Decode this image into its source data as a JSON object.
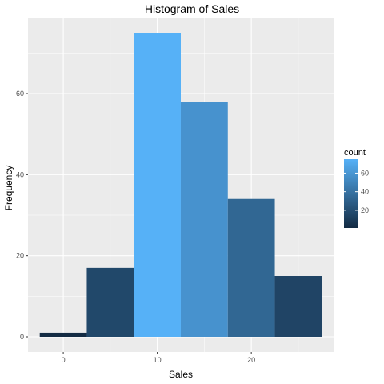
{
  "chart_data": {
    "type": "bar",
    "title": "Histogram of Sales",
    "xlabel": "Sales",
    "ylabel": "Frequency",
    "bins": [
      {
        "x0": -2.5,
        "x1": 2.5,
        "count": 1
      },
      {
        "x0": 2.5,
        "x1": 7.5,
        "count": 17
      },
      {
        "x0": 7.5,
        "x1": 12.5,
        "count": 75
      },
      {
        "x0": 12.5,
        "x1": 17.5,
        "count": 58
      },
      {
        "x0": 17.5,
        "x1": 22.5,
        "count": 34
      },
      {
        "x0": 22.5,
        "x1": 27.5,
        "count": 15
      }
    ],
    "xlim": [
      -3.75,
      28.75
    ],
    "ylim": [
      -3.75,
      78.75
    ],
    "x_ticks": [
      0,
      10,
      20
    ],
    "y_ticks": [
      0,
      20,
      40,
      60
    ],
    "grid": true,
    "legend": {
      "title": "count",
      "placement": "right",
      "ticks": [
        20,
        40,
        60
      ],
      "range": [
        1,
        75
      ],
      "color_low": "#132B43",
      "color_high": "#56B1F7"
    },
    "colors": {
      "panel_background": "#EBEBEB",
      "grid_major": "#FFFFFF",
      "low": "#132B43",
      "high": "#56B1F7"
    }
  }
}
